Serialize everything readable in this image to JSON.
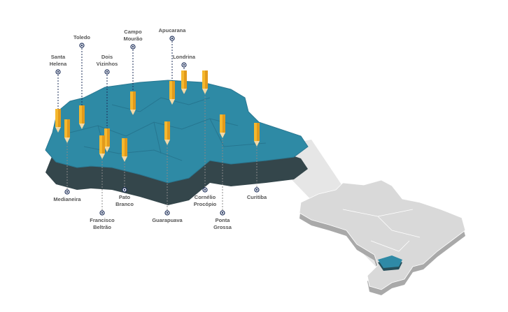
{
  "cities": [
    {
      "lines": [
        "Santa",
        "Helena"
      ]
    },
    {
      "lines": [
        "Toledo"
      ]
    },
    {
      "lines": [
        "Dois",
        "Vizinhos"
      ]
    },
    {
      "lines": [
        "Campo",
        "Mourão"
      ]
    },
    {
      "lines": [
        "Apucarana"
      ]
    },
    {
      "lines": [
        "Londrina"
      ]
    },
    {
      "lines": [
        "Medianeira"
      ]
    },
    {
      "lines": [
        "Francisco",
        "Beltrão"
      ]
    },
    {
      "lines": [
        "Pato",
        "Branco"
      ]
    },
    {
      "lines": [
        "Guarapuava"
      ]
    },
    {
      "lines": [
        "Cornélio",
        "Procópio"
      ]
    },
    {
      "lines": [
        "Ponta",
        "Grossa"
      ]
    },
    {
      "lines": [
        "Curitiba"
      ]
    }
  ]
}
